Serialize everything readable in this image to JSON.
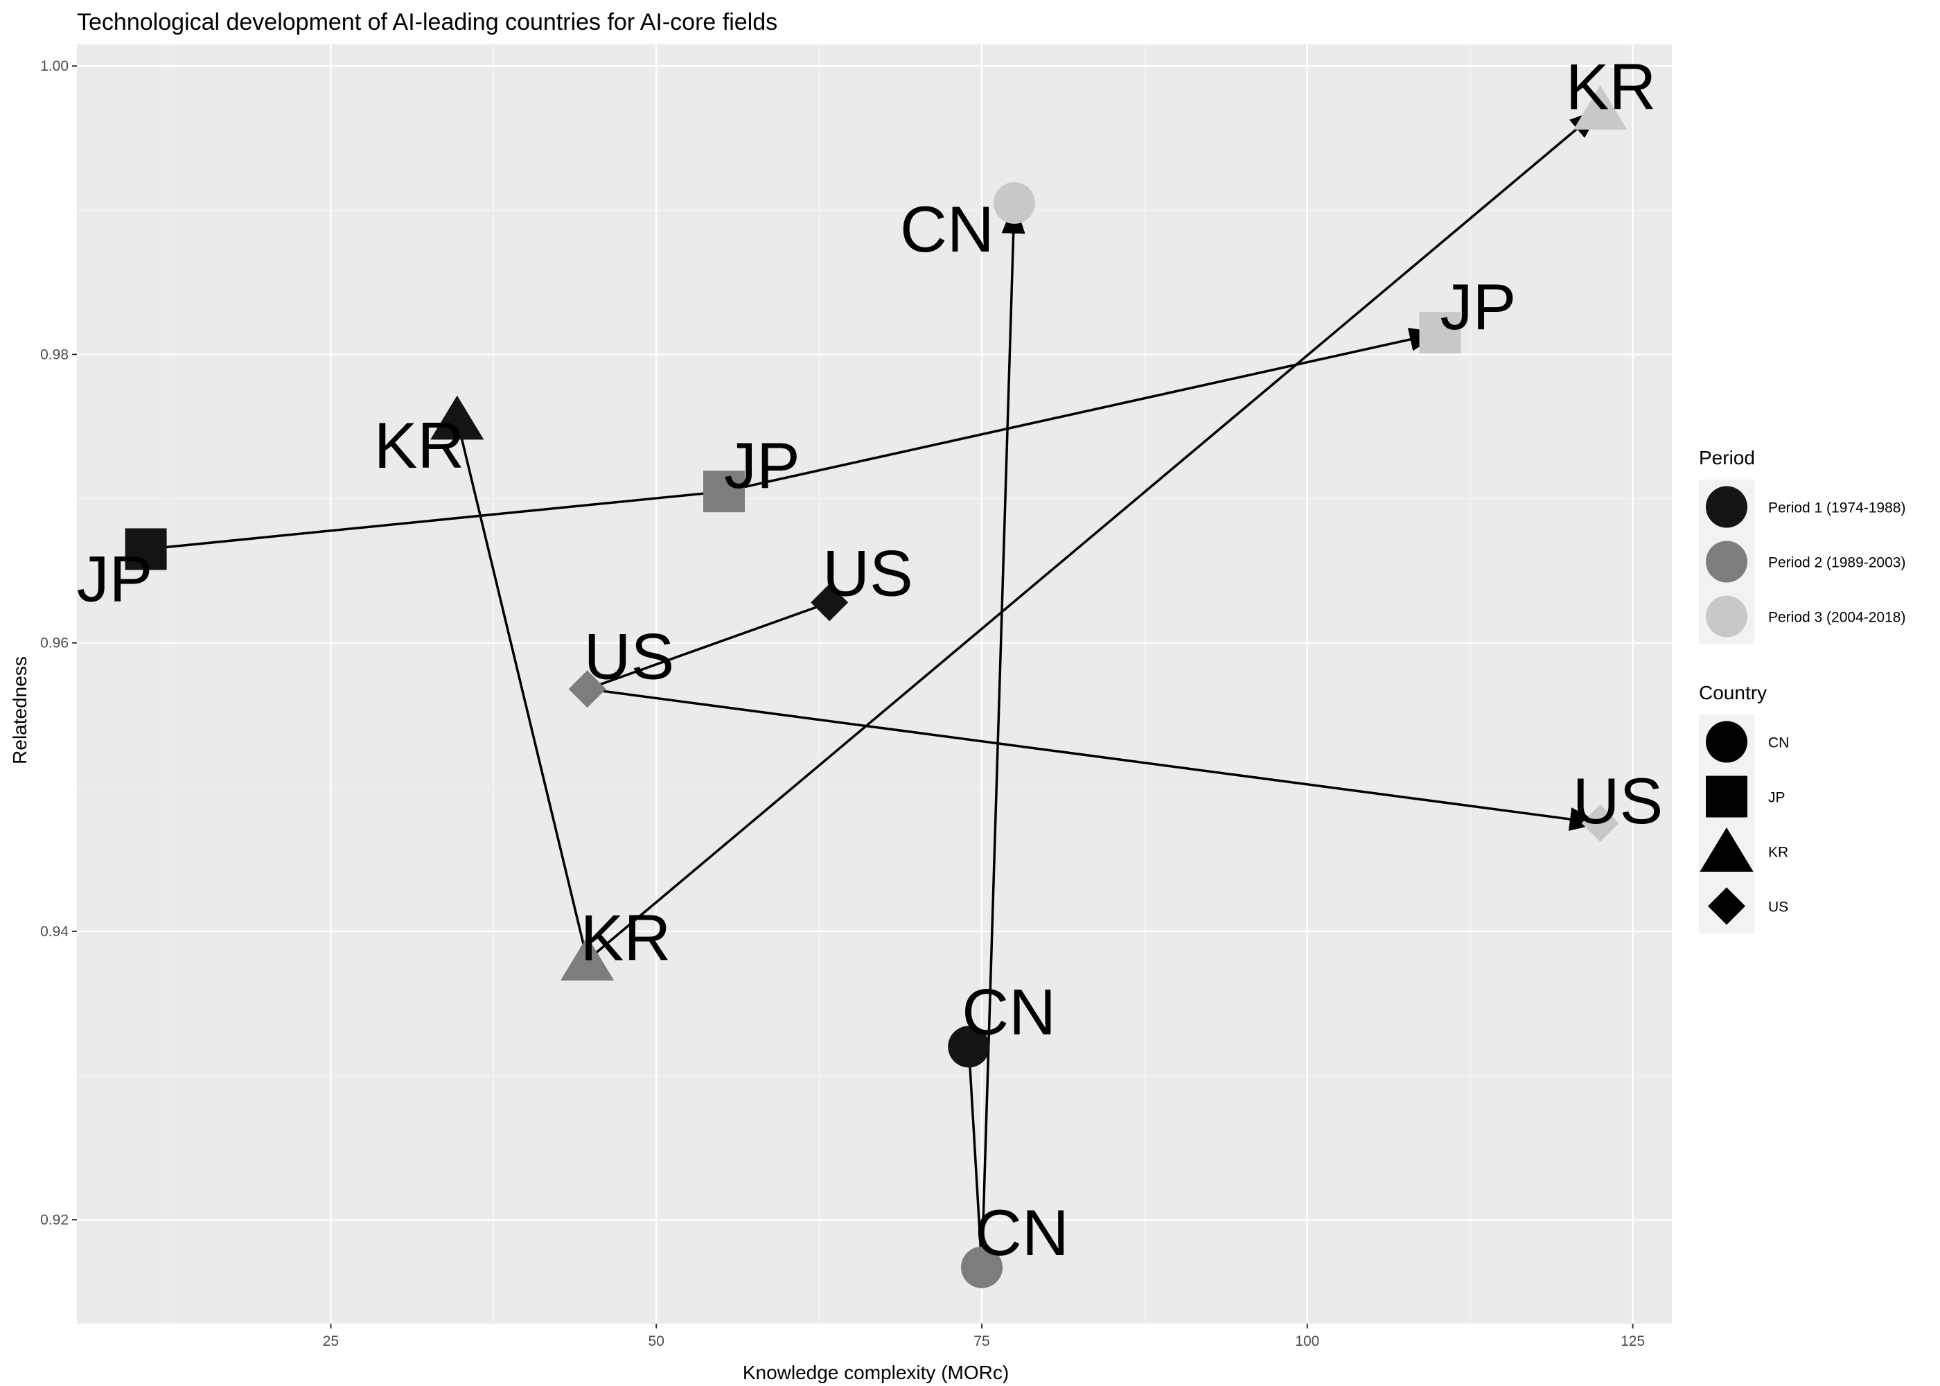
{
  "chart_data": {
    "type": "scatter",
    "title": "Technological development of AI-leading countries for AI-core fields",
    "xlabel": "Knowledge complexity (MORc)",
    "ylabel": "Relatedness",
    "xlim": [
      5.5,
      128
    ],
    "ylim": [
      0.9128,
      1.0015
    ],
    "xticks": [
      25,
      50,
      75,
      100,
      125
    ],
    "yticks": [
      0.92,
      0.94,
      0.96,
      0.98,
      1.0
    ],
    "xtick_labels": [
      "25",
      "50",
      "75",
      "100",
      "125"
    ],
    "ytick_labels": [
      "0.92",
      "0.94",
      "0.96",
      "0.98",
      "1.00"
    ],
    "grid": true,
    "legend_position": "right",
    "legends": [
      {
        "title": "Period",
        "items": [
          {
            "label": "Period 1 (1974-1988)",
            "color": "#141414"
          },
          {
            "label": "Period 2 (1989-2003)",
            "color": "#7d7d7d"
          },
          {
            "label": "Period 3 (2004-2018)",
            "color": "#c8c8c8"
          }
        ]
      },
      {
        "title": "Country",
        "items": [
          {
            "label": "CN",
            "shape": "circle"
          },
          {
            "label": "JP",
            "shape": "square"
          },
          {
            "label": "KR",
            "shape": "triangle"
          },
          {
            "label": "US",
            "shape": "diamond"
          }
        ]
      }
    ],
    "series": [
      {
        "name": "CN",
        "shape": "circle",
        "points": [
          {
            "x": 74.0,
            "y": 0.932,
            "period": 1
          },
          {
            "x": 75.0,
            "y": 0.9167,
            "period": 2
          },
          {
            "x": 77.5,
            "y": 0.9905,
            "period": 3
          }
        ]
      },
      {
        "name": "JP",
        "shape": "square",
        "points": [
          {
            "x": 10.8,
            "y": 0.9665,
            "period": 1
          },
          {
            "x": 55.2,
            "y": 0.9705,
            "period": 2
          },
          {
            "x": 110.2,
            "y": 0.9815,
            "period": 3
          }
        ]
      },
      {
        "name": "KR",
        "shape": "triangle",
        "points": [
          {
            "x": 34.7,
            "y": 0.9755,
            "period": 1
          },
          {
            "x": 44.7,
            "y": 0.938,
            "period": 2
          },
          {
            "x": 122.5,
            "y": 0.997,
            "period": 3
          }
        ]
      },
      {
        "name": "US",
        "shape": "diamond",
        "points": [
          {
            "x": 63.3,
            "y": 0.9628,
            "period": 1
          },
          {
            "x": 44.7,
            "y": 0.9568,
            "period": 2
          },
          {
            "x": 122.5,
            "y": 0.9475,
            "period": 3
          }
        ]
      }
    ],
    "period_colors": {
      "1": "#141414",
      "2": "#7d7d7d",
      "3": "#c8c8c8"
    }
  }
}
